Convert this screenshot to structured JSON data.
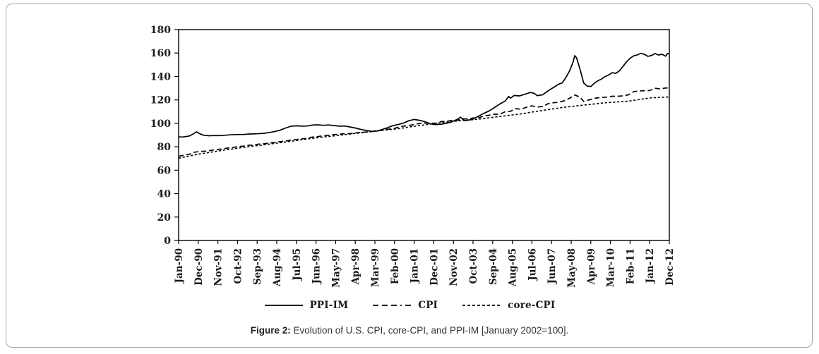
{
  "figure": {
    "caption_label": "Figure 2:",
    "caption_text": " Evolution of U.S. CPI, core-CPI, and PPI-IM [January 2002=100]."
  },
  "chart_data": {
    "type": "line",
    "title": "",
    "xlabel": "",
    "ylabel": "",
    "index_base_note": "January 2002=100",
    "ylim": [
      0,
      180
    ],
    "y_ticks": [
      0,
      20,
      40,
      60,
      80,
      100,
      120,
      140,
      160,
      180
    ],
    "x_range_months": [
      0,
      275
    ],
    "x_tick_months": [
      0,
      11,
      22,
      33,
      44,
      55,
      66,
      77,
      88,
      99,
      110,
      121,
      132,
      143,
      154,
      165,
      176,
      187,
      198,
      209,
      220,
      231,
      242,
      253,
      264,
      275
    ],
    "x_tick_labels": [
      "Jan-90",
      "Dec-90",
      "Nov-91",
      "Oct-92",
      "Sep-93",
      "Aug-94",
      "Jul-95",
      "Jun-96",
      "May-97",
      "Apr-98",
      "Mar-99",
      "Feb-00",
      "Jan-01",
      "Dec-01",
      "Nov-02",
      "Oct-03",
      "Sep-04",
      "Aug-05",
      "Jul-06",
      "Jun-07",
      "May-08",
      "Apr-09",
      "Mar-10",
      "Feb-11",
      "Jan-12",
      "Dec-12"
    ],
    "grid": false,
    "legend_position": "bottom",
    "line_color": "#000000",
    "series": [
      {
        "name": "PPI-IM",
        "style": "solid",
        "color": "#000000",
        "points": [
          [
            0,
            88.5
          ],
          [
            2,
            88.3
          ],
          [
            4,
            88.7
          ],
          [
            6,
            89.2
          ],
          [
            8,
            90.8
          ],
          [
            10,
            92.7
          ],
          [
            12,
            91.0
          ],
          [
            14,
            89.8
          ],
          [
            17,
            89.4
          ],
          [
            20,
            89.6
          ],
          [
            24,
            89.5
          ],
          [
            28,
            90.1
          ],
          [
            32,
            90.4
          ],
          [
            36,
            90.5
          ],
          [
            40,
            90.9
          ],
          [
            44,
            91.1
          ],
          [
            48,
            91.5
          ],
          [
            51,
            92.2
          ],
          [
            54,
            93.1
          ],
          [
            57,
            94.3
          ],
          [
            60,
            96.0
          ],
          [
            63,
            97.5
          ],
          [
            66,
            97.9
          ],
          [
            69,
            97.6
          ],
          [
            72,
            97.7
          ],
          [
            75,
            98.5
          ],
          [
            78,
            98.7
          ],
          [
            81,
            98.3
          ],
          [
            84,
            98.6
          ],
          [
            87,
            98.1
          ],
          [
            90,
            97.6
          ],
          [
            93,
            97.7
          ],
          [
            96,
            96.9
          ],
          [
            99,
            96.0
          ],
          [
            102,
            94.9
          ],
          [
            105,
            94.0
          ],
          [
            108,
            93.2
          ],
          [
            111,
            93.4
          ],
          [
            114,
            94.7
          ],
          [
            117,
            96.2
          ],
          [
            120,
            98.0
          ],
          [
            123,
            99.0
          ],
          [
            126,
            100.2
          ],
          [
            129,
            102.2
          ],
          [
            132,
            103.3
          ],
          [
            135,
            102.6
          ],
          [
            138,
            101.4
          ],
          [
            141,
            99.6
          ],
          [
            144,
            99.0
          ],
          [
            147,
            99.2
          ],
          [
            150,
            100.0
          ],
          [
            153,
            101.2
          ],
          [
            156,
            103.3
          ],
          [
            158,
            105.3
          ],
          [
            160,
            102.2
          ],
          [
            162,
            102.5
          ],
          [
            165,
            103.6
          ],
          [
            168,
            106.0
          ],
          [
            171,
            108.5
          ],
          [
            174,
            110.6
          ],
          [
            177,
            113.5
          ],
          [
            180,
            116.5
          ],
          [
            183,
            119.0
          ],
          [
            185,
            123.0
          ],
          [
            186,
            121.5
          ],
          [
            188,
            123.8
          ],
          [
            191,
            123.4
          ],
          [
            194,
            124.8
          ],
          [
            197,
            126.3
          ],
          [
            199,
            125.8
          ],
          [
            201,
            123.6
          ],
          [
            204,
            124.4
          ],
          [
            207,
            127.6
          ],
          [
            210,
            130.6
          ],
          [
            213,
            133.4
          ],
          [
            215,
            134.6
          ],
          [
            217,
            139.0
          ],
          [
            219,
            144.5
          ],
          [
            221,
            152.0
          ],
          [
            222,
            157.8
          ],
          [
            223,
            156.0
          ],
          [
            225,
            146.0
          ],
          [
            227,
            134.5
          ],
          [
            229,
            131.8
          ],
          [
            231,
            131.4
          ],
          [
            233,
            134.3
          ],
          [
            235,
            136.4
          ],
          [
            237,
            137.8
          ],
          [
            239,
            139.9
          ],
          [
            241,
            141.3
          ],
          [
            243,
            143.2
          ],
          [
            245,
            142.7
          ],
          [
            247,
            144.8
          ],
          [
            249,
            148.5
          ],
          [
            251,
            152.5
          ],
          [
            253,
            155.5
          ],
          [
            255,
            157.6
          ],
          [
            257,
            158.4
          ],
          [
            259,
            159.8
          ],
          [
            261,
            158.9
          ],
          [
            263,
            157.2
          ],
          [
            265,
            157.9
          ],
          [
            267,
            159.6
          ],
          [
            269,
            158.3
          ],
          [
            271,
            158.9
          ],
          [
            273,
            157.3
          ],
          [
            274,
            159.6
          ],
          [
            275,
            159.4
          ]
        ]
      },
      {
        "name": "CPI",
        "style": "dashed",
        "color": "#000000",
        "points": [
          [
            0,
            71.9
          ],
          [
            3,
            72.8
          ],
          [
            6,
            73.6
          ],
          [
            9,
            75.4
          ],
          [
            12,
            76.0
          ],
          [
            15,
            76.3
          ],
          [
            18,
            76.9
          ],
          [
            21,
            77.6
          ],
          [
            24,
            78.0
          ],
          [
            27,
            78.8
          ],
          [
            30,
            79.3
          ],
          [
            33,
            80.1
          ],
          [
            36,
            80.5
          ],
          [
            39,
            81.3
          ],
          [
            42,
            81.5
          ],
          [
            45,
            82.3
          ],
          [
            48,
            82.6
          ],
          [
            51,
            83.2
          ],
          [
            54,
            83.8
          ],
          [
            57,
            84.4
          ],
          [
            60,
            84.9
          ],
          [
            63,
            85.8
          ],
          [
            66,
            86.1
          ],
          [
            69,
            86.8
          ],
          [
            72,
            87.2
          ],
          [
            75,
            88.3
          ],
          [
            78,
            88.7
          ],
          [
            81,
            89.4
          ],
          [
            84,
            89.8
          ],
          [
            87,
            90.5
          ],
          [
            90,
            90.6
          ],
          [
            93,
            91.2
          ],
          [
            96,
            91.2
          ],
          [
            99,
            91.8
          ],
          [
            102,
            92.2
          ],
          [
            105,
            92.6
          ],
          [
            108,
            92.8
          ],
          [
            111,
            93.8
          ],
          [
            114,
            94.1
          ],
          [
            117,
            95.0
          ],
          [
            120,
            95.3
          ],
          [
            123,
            96.7
          ],
          [
            126,
            97.6
          ],
          [
            129,
            98.2
          ],
          [
            132,
            98.9
          ],
          [
            135,
            99.9
          ],
          [
            138,
            100.2
          ],
          [
            141,
            100.3
          ],
          [
            144,
            100.0
          ],
          [
            147,
            101.5
          ],
          [
            150,
            101.7
          ],
          [
            153,
            102.4
          ],
          [
            156,
            102.6
          ],
          [
            159,
            103.8
          ],
          [
            162,
            103.8
          ],
          [
            165,
            104.5
          ],
          [
            168,
            104.6
          ],
          [
            171,
            106.2
          ],
          [
            174,
            106.9
          ],
          [
            177,
            107.8
          ],
          [
            180,
            107.7
          ],
          [
            183,
            109.9
          ],
          [
            186,
            110.3
          ],
          [
            189,
            112.5
          ],
          [
            192,
            112.0
          ],
          [
            195,
            113.8
          ],
          [
            198,
            114.9
          ],
          [
            201,
            113.9
          ],
          [
            204,
            114.3
          ],
          [
            207,
            116.7
          ],
          [
            210,
            117.6
          ],
          [
            213,
            118.0
          ],
          [
            216,
            119.2
          ],
          [
            219,
            121.3
          ],
          [
            222,
            124.2
          ],
          [
            225,
            122.3
          ],
          [
            227,
            118.7
          ],
          [
            228,
            119.2
          ],
          [
            231,
            120.4
          ],
          [
            234,
            121.6
          ],
          [
            237,
            122.1
          ],
          [
            240,
            122.4
          ],
          [
            243,
            123.1
          ],
          [
            246,
            123.1
          ],
          [
            249,
            123.5
          ],
          [
            252,
            124.3
          ],
          [
            255,
            127.0
          ],
          [
            258,
            127.6
          ],
          [
            261,
            127.8
          ],
          [
            264,
            128.0
          ],
          [
            267,
            129.9
          ],
          [
            270,
            129.4
          ],
          [
            273,
            130.2
          ],
          [
            275,
            130.0
          ]
        ]
      },
      {
        "name": "core-CPI",
        "style": "dotted",
        "color": "#000000",
        "points": [
          [
            0,
            70.2
          ],
          [
            3,
            71.1
          ],
          [
            6,
            72.1
          ],
          [
            9,
            73.0
          ],
          [
            12,
            73.9
          ],
          [
            15,
            74.6
          ],
          [
            18,
            75.4
          ],
          [
            21,
            76.1
          ],
          [
            24,
            76.8
          ],
          [
            27,
            77.5
          ],
          [
            30,
            78.1
          ],
          [
            33,
            78.8
          ],
          [
            36,
            79.4
          ],
          [
            39,
            80.0
          ],
          [
            42,
            80.6
          ],
          [
            45,
            81.1
          ],
          [
            48,
            81.7
          ],
          [
            51,
            82.3
          ],
          [
            54,
            82.9
          ],
          [
            57,
            83.5
          ],
          [
            60,
            84.1
          ],
          [
            63,
            84.7
          ],
          [
            66,
            85.3
          ],
          [
            69,
            86.0
          ],
          [
            72,
            86.6
          ],
          [
            75,
            87.2
          ],
          [
            78,
            87.7
          ],
          [
            81,
            88.3
          ],
          [
            84,
            88.8
          ],
          [
            87,
            89.3
          ],
          [
            90,
            89.8
          ],
          [
            93,
            90.3
          ],
          [
            96,
            90.8
          ],
          [
            99,
            91.4
          ],
          [
            102,
            91.9
          ],
          [
            105,
            92.5
          ],
          [
            108,
            93.0
          ],
          [
            111,
            93.5
          ],
          [
            114,
            94.0
          ],
          [
            117,
            94.4
          ],
          [
            120,
            94.9
          ],
          [
            123,
            95.5
          ],
          [
            126,
            96.1
          ],
          [
            129,
            96.8
          ],
          [
            132,
            97.4
          ],
          [
            135,
            98.1
          ],
          [
            138,
            98.7
          ],
          [
            141,
            99.4
          ],
          [
            144,
            100.0
          ],
          [
            147,
            100.5
          ],
          [
            150,
            101.0
          ],
          [
            153,
            101.5
          ],
          [
            156,
            102.0
          ],
          [
            159,
            102.4
          ],
          [
            162,
            102.8
          ],
          [
            165,
            103.1
          ],
          [
            168,
            103.5
          ],
          [
            171,
            104.1
          ],
          [
            174,
            104.7
          ],
          [
            177,
            105.3
          ],
          [
            180,
            105.9
          ],
          [
            183,
            106.4
          ],
          [
            186,
            107.0
          ],
          [
            189,
            107.5
          ],
          [
            192,
            108.1
          ],
          [
            195,
            108.8
          ],
          [
            198,
            109.6
          ],
          [
            201,
            110.3
          ],
          [
            204,
            111.0
          ],
          [
            207,
            111.7
          ],
          [
            210,
            112.4
          ],
          [
            213,
            113.0
          ],
          [
            216,
            113.7
          ],
          [
            219,
            114.2
          ],
          [
            222,
            114.7
          ],
          [
            225,
            115.2
          ],
          [
            228,
            115.7
          ],
          [
            231,
            116.2
          ],
          [
            234,
            116.7
          ],
          [
            237,
            117.2
          ],
          [
            240,
            117.7
          ],
          [
            243,
            118.0
          ],
          [
            246,
            118.3
          ],
          [
            249,
            118.6
          ],
          [
            252,
            118.9
          ],
          [
            255,
            119.6
          ],
          [
            258,
            120.3
          ],
          [
            261,
            121.0
          ],
          [
            264,
            121.6
          ],
          [
            267,
            121.9
          ],
          [
            270,
            122.2
          ],
          [
            273,
            122.4
          ],
          [
            275,
            122.5
          ]
        ]
      }
    ]
  }
}
